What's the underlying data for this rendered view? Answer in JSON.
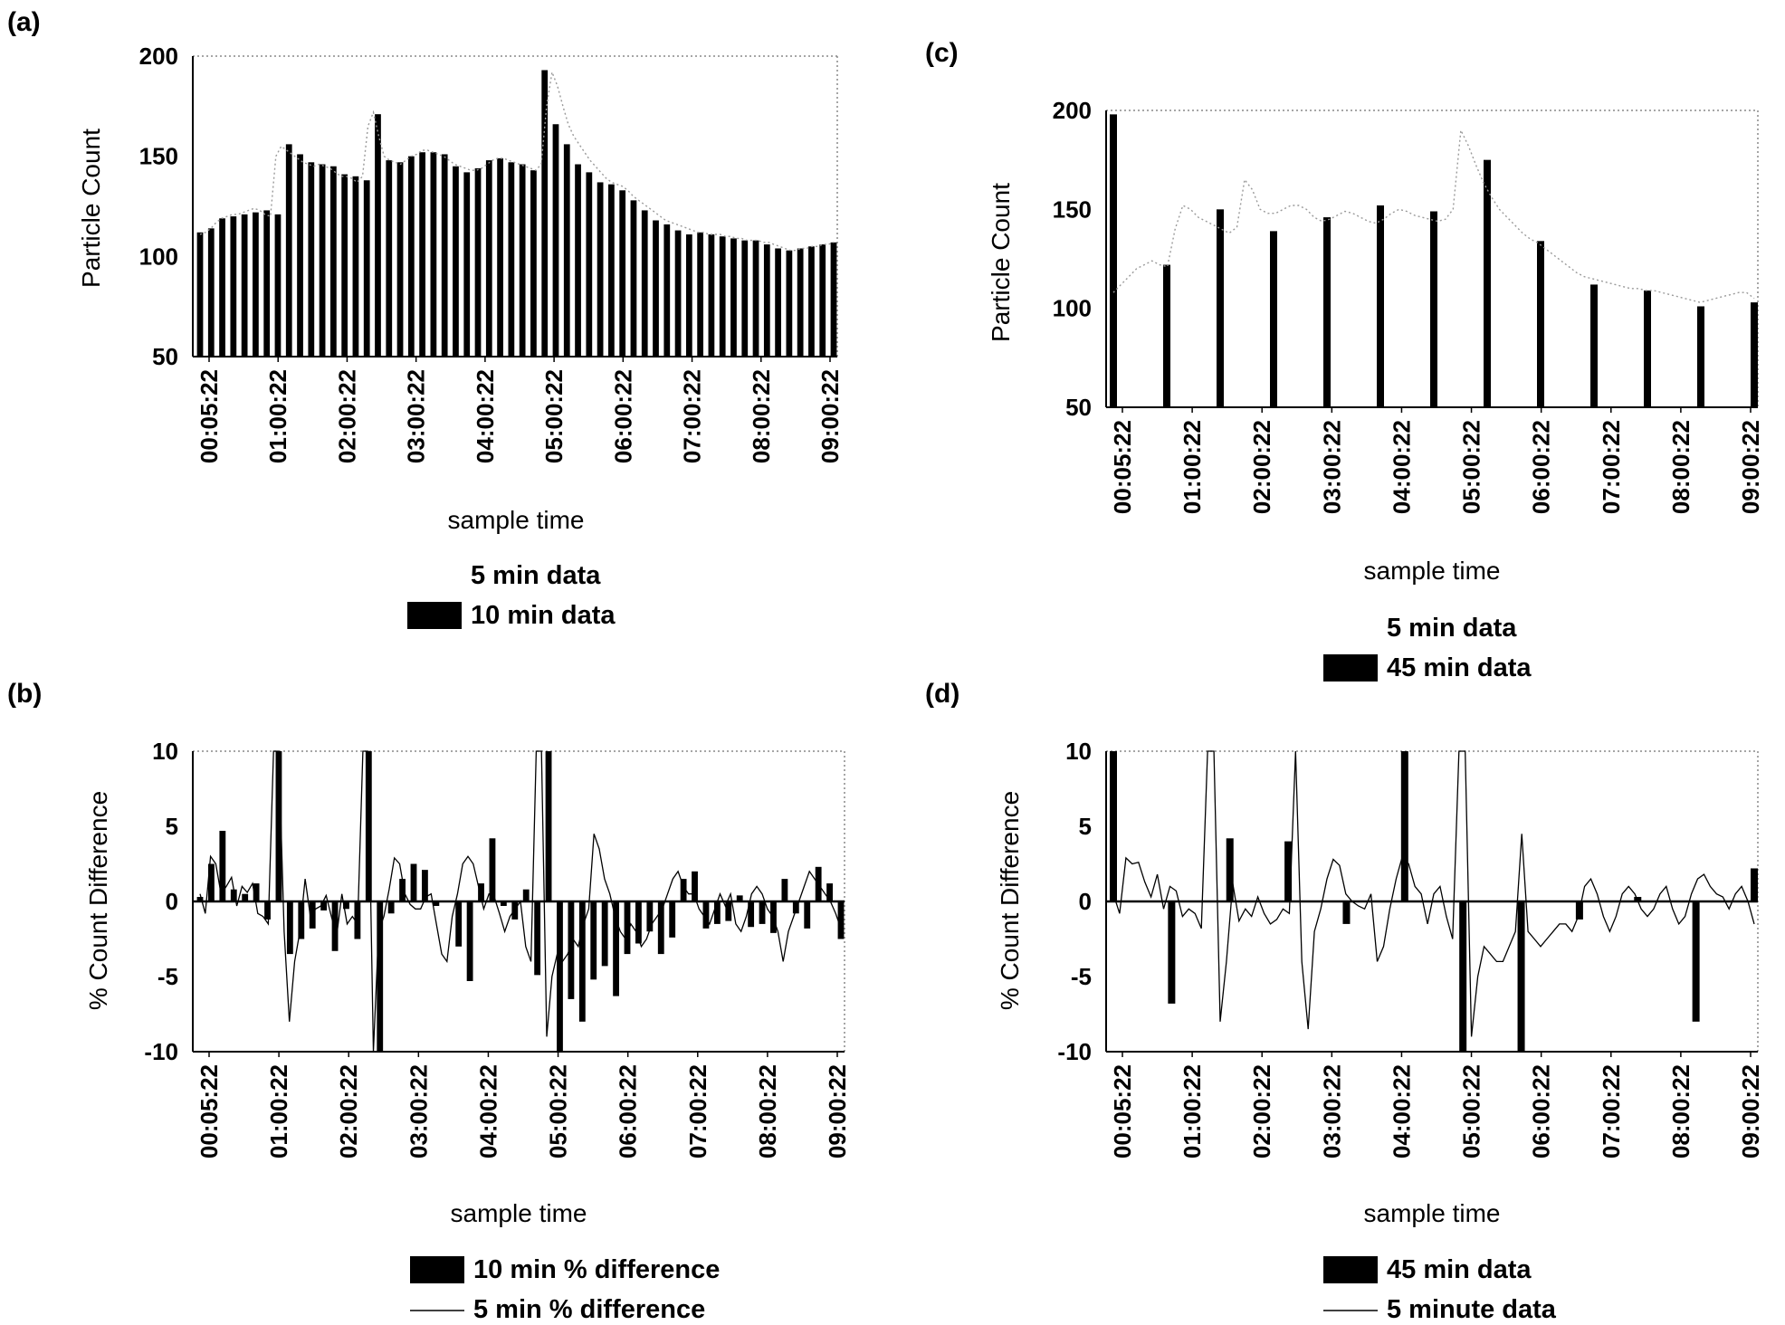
{
  "panels": [
    {
      "label": "(a)"
    },
    {
      "label": "(c)"
    },
    {
      "label": "(b)"
    },
    {
      "label": "(d)"
    }
  ],
  "chart_data": [
    {
      "panel": "(a)",
      "type": "bar",
      "xlabel": "sample time",
      "ylabel": "Particle Count",
      "ylim": [
        50,
        200
      ],
      "yticks": [
        "200",
        "150",
        "100",
        "50"
      ],
      "xticks": [
        "00:05:22",
        "01:00:22",
        "02:00:22",
        "03:00:22",
        "04:00:22",
        "05:00:22",
        "06:00:22",
        "07:00:22",
        "08:00:22",
        "09:00:22"
      ],
      "legend": [
        {
          "name": "5 min data",
          "style": "line"
        },
        {
          "name": "10 min data",
          "style": "bar"
        }
      ],
      "series": [
        {
          "name": "10 min data",
          "kind": "bar",
          "values": [
            112,
            114,
            119,
            120,
            121,
            122,
            123,
            121,
            156,
            151,
            147,
            146,
            145,
            141,
            140,
            138,
            171,
            148,
            147,
            150,
            152,
            152,
            151,
            145,
            142,
            144,
            148,
            149,
            147,
            146,
            143,
            193,
            166,
            156,
            146,
            142,
            137,
            136,
            133,
            128,
            123,
            118,
            116,
            113,
            111,
            112,
            111,
            110,
            109,
            108,
            108,
            106,
            104,
            103,
            104,
            105,
            106,
            107
          ]
        },
        {
          "name": "5 min data",
          "kind": "line",
          "values": [
            111,
            112,
            114,
            117,
            119,
            120,
            121,
            121,
            122,
            123,
            124,
            123,
            121,
            120,
            150,
            155,
            153,
            151,
            149,
            147,
            146,
            145,
            146,
            145,
            144,
            142,
            140,
            140,
            139,
            137,
            140,
            165,
            172,
            160,
            150,
            148,
            147,
            146,
            148,
            150,
            151,
            153,
            153,
            152,
            151,
            150,
            148,
            146,
            145,
            144,
            143,
            143,
            144,
            146,
            148,
            149,
            149,
            148,
            147,
            146,
            145,
            144,
            143,
            146,
            175,
            192,
            185,
            175,
            166,
            160,
            156,
            152,
            148,
            145,
            142,
            139,
            137,
            136,
            135,
            133,
            130,
            128,
            126,
            124,
            122,
            120,
            118,
            117,
            116,
            115,
            114,
            113,
            112,
            112,
            111,
            111,
            111,
            110,
            110,
            109,
            109,
            108,
            108,
            108,
            107,
            107,
            106,
            105,
            104,
            103,
            103,
            104,
            104,
            105,
            105,
            106,
            106,
            107
          ]
        }
      ]
    },
    {
      "panel": "(c)",
      "type": "bar",
      "xlabel": "sample time",
      "ylabel": "Particle Count",
      "ylim": [
        50,
        200
      ],
      "yticks": [
        "200",
        "150",
        "100",
        "50"
      ],
      "xticks": [
        "00:05:22",
        "01:00:22",
        "02:00:22",
        "03:00:22",
        "04:00:22",
        "05:00:22",
        "06:00:22",
        "07:00:22",
        "08:00:22",
        "09:00:22"
      ],
      "legend": [
        {
          "name": "5 min data",
          "style": "line"
        },
        {
          "name": "45 min data",
          "style": "bar"
        }
      ],
      "series": [
        {
          "name": "45 min data",
          "kind": "bar",
          "values": [
            198,
            122,
            150,
            139,
            146,
            152,
            149,
            175,
            134,
            112,
            109,
            101,
            103
          ]
        },
        {
          "name": "5 min data",
          "kind": "line",
          "values": [
            108,
            112,
            116,
            120,
            122,
            124,
            122,
            121,
            140,
            152,
            150,
            146,
            144,
            142,
            140,
            138,
            141,
            165,
            160,
            150,
            148,
            148,
            150,
            152,
            152,
            150,
            146,
            144,
            145,
            147,
            149,
            148,
            146,
            144,
            143,
            145,
            148,
            150,
            149,
            147,
            146,
            145,
            144,
            145,
            150,
            190,
            182,
            172,
            163,
            156,
            150,
            146,
            142,
            138,
            135,
            133,
            130,
            127,
            124,
            121,
            118,
            116,
            115,
            114,
            113,
            112,
            111,
            110,
            110,
            109,
            109,
            108,
            107,
            106,
            105,
            104,
            103,
            104,
            105,
            106,
            107,
            108,
            108,
            105
          ]
        }
      ]
    },
    {
      "panel": "(b)",
      "type": "bar",
      "xlabel": "sample time",
      "ylabel": "% Count Difference",
      "ylim": [
        -10,
        10
      ],
      "yticks": [
        "10",
        "5",
        "0",
        "-5",
        "-10"
      ],
      "xticks": [
        "00:05:22",
        "01:00:22",
        "02:00:22",
        "03:00:22",
        "04:00:22",
        "05:00:22",
        "06:00:22",
        "07:00:22",
        "08:00:22",
        "09:00:22"
      ],
      "legend": [
        {
          "name": "10 min % difference",
          "style": "bar"
        },
        {
          "name": "5 min % difference",
          "style": "line"
        }
      ],
      "series": [
        {
          "name": "10 min % difference",
          "kind": "bar",
          "values": [
            0.3,
            2.5,
            4.7,
            0.8,
            0.5,
            1.2,
            -1.2,
            10,
            -3.5,
            -2.5,
            -1.8,
            -0.6,
            -3.3,
            -0.5,
            -2.5,
            10,
            -10,
            -0.8,
            1.5,
            2.5,
            2.1,
            -0.3,
            0,
            -3,
            -5.3,
            1.2,
            4.2,
            -0.3,
            -1.2,
            0.8,
            -4.9,
            10,
            -10,
            -6.5,
            -8,
            -5.2,
            -4.3,
            -6.3,
            -3.5,
            -2.8,
            -2,
            -3.5,
            -2.4,
            1.5,
            2,
            -1.8,
            -1.5,
            -1.3,
            0.4,
            -1.7,
            -1.5,
            -2.1,
            1.5,
            -0.8,
            -1.8,
            2.3,
            1.2,
            -2.5
          ]
        },
        {
          "name": "5 min % difference",
          "kind": "line",
          "values": [
            0.5,
            -0.8,
            3,
            2.5,
            0.5,
            1,
            1.6,
            -0.3,
            1,
            0.6,
            1.2,
            -0.8,
            -1,
            -1.5,
            10,
            10,
            -2,
            -8,
            -4,
            -2,
            1.5,
            -1,
            -0.5,
            -0.3,
            0.4,
            -1,
            -2.3,
            0.5,
            -1.5,
            -1,
            -1.5,
            10,
            10,
            -10,
            -2,
            -1,
            0.8,
            2.9,
            2.5,
            0.5,
            -0.2,
            -0.5,
            -0.5,
            0.3,
            0.5,
            -1.5,
            -3.5,
            -4,
            -1,
            0.5,
            2.5,
            3,
            2.5,
            1,
            -0.5,
            0.5,
            0.3,
            -0.8,
            -2,
            -1,
            -0.5,
            0,
            -3,
            -4,
            10,
            10,
            -9,
            -5,
            -3.5,
            -4,
            -3.5,
            -2.5,
            -3,
            -1.5,
            -0.5,
            4.5,
            3.5,
            1.5,
            0.5,
            -1,
            -2,
            -2.5,
            -1.5,
            -2,
            -3,
            -2.5,
            -1.5,
            -1,
            -0.5,
            0.5,
            1.5,
            2,
            1,
            0.5,
            0.5,
            -0.5,
            -1,
            -1.5,
            -0.5,
            0.5,
            -0.3,
            0.5,
            -1.5,
            -2,
            -1,
            0.5,
            1,
            0.5,
            -0.5,
            -1,
            -2,
            -4,
            -2,
            -1,
            0,
            1,
            2,
            1.5,
            1,
            0.5,
            0,
            -0.8,
            -1.8
          ]
        }
      ]
    },
    {
      "panel": "(d)",
      "type": "bar",
      "xlabel": "sample time",
      "ylabel": "% Count Difference",
      "ylim": [
        -10,
        10
      ],
      "yticks": [
        "10",
        "5",
        "0",
        "-5",
        "-10"
      ],
      "xticks": [
        "00:05:22",
        "01:00:22",
        "02:00:22",
        "03:00:22",
        "04:00:22",
        "05:00:22",
        "06:00:22",
        "07:00:22",
        "08:00:22",
        "09:00:22"
      ],
      "legend": [
        {
          "name": "45 min data",
          "style": "bar"
        },
        {
          "name": "5 minute data",
          "style": "line"
        }
      ],
      "series": [
        {
          "name": "45 min data",
          "kind": "bar",
          "values": [
            10,
            -6.8,
            4.2,
            4,
            -1.5,
            10,
            -10,
            -10,
            -1.2,
            0.3,
            -8,
            2.2
          ]
        },
        {
          "name": "5 minute data",
          "kind": "line",
          "values": [
            0.5,
            -0.8,
            2.9,
            2.5,
            2.6,
            1.3,
            0.3,
            1.8,
            -0.5,
            1,
            0.7,
            -1,
            -0.5,
            -0.8,
            -1.8,
            10,
            10,
            -8,
            -4,
            1.2,
            -1.3,
            -0.5,
            -1,
            0.3,
            -0.8,
            -1.5,
            -1.2,
            -0.5,
            -0.8,
            10,
            -4,
            -8.5,
            -2,
            -0.5,
            1.5,
            2.8,
            2.4,
            0.5,
            0,
            -0.3,
            -0.5,
            0.5,
            -4,
            -3,
            -0.5,
            1.5,
            3,
            2.5,
            1,
            0.5,
            -1.5,
            0.5,
            1,
            -1,
            -2.5,
            10,
            10,
            -9,
            -5,
            -3,
            -3.5,
            -4,
            -4,
            -3,
            -2,
            4.5,
            -2,
            -2.5,
            -3,
            -2.5,
            -2,
            -1.5,
            -1.5,
            -2,
            -1,
            1,
            1.5,
            0.5,
            -1,
            -2,
            -1,
            0.5,
            1,
            0.5,
            -0.5,
            -1,
            -0.5,
            0.5,
            1,
            -0.5,
            -1.5,
            -1,
            0.5,
            1.5,
            1.8,
            1,
            0.5,
            0.3,
            -0.5,
            0.5,
            1,
            0,
            -1.5
          ]
        }
      ]
    }
  ]
}
